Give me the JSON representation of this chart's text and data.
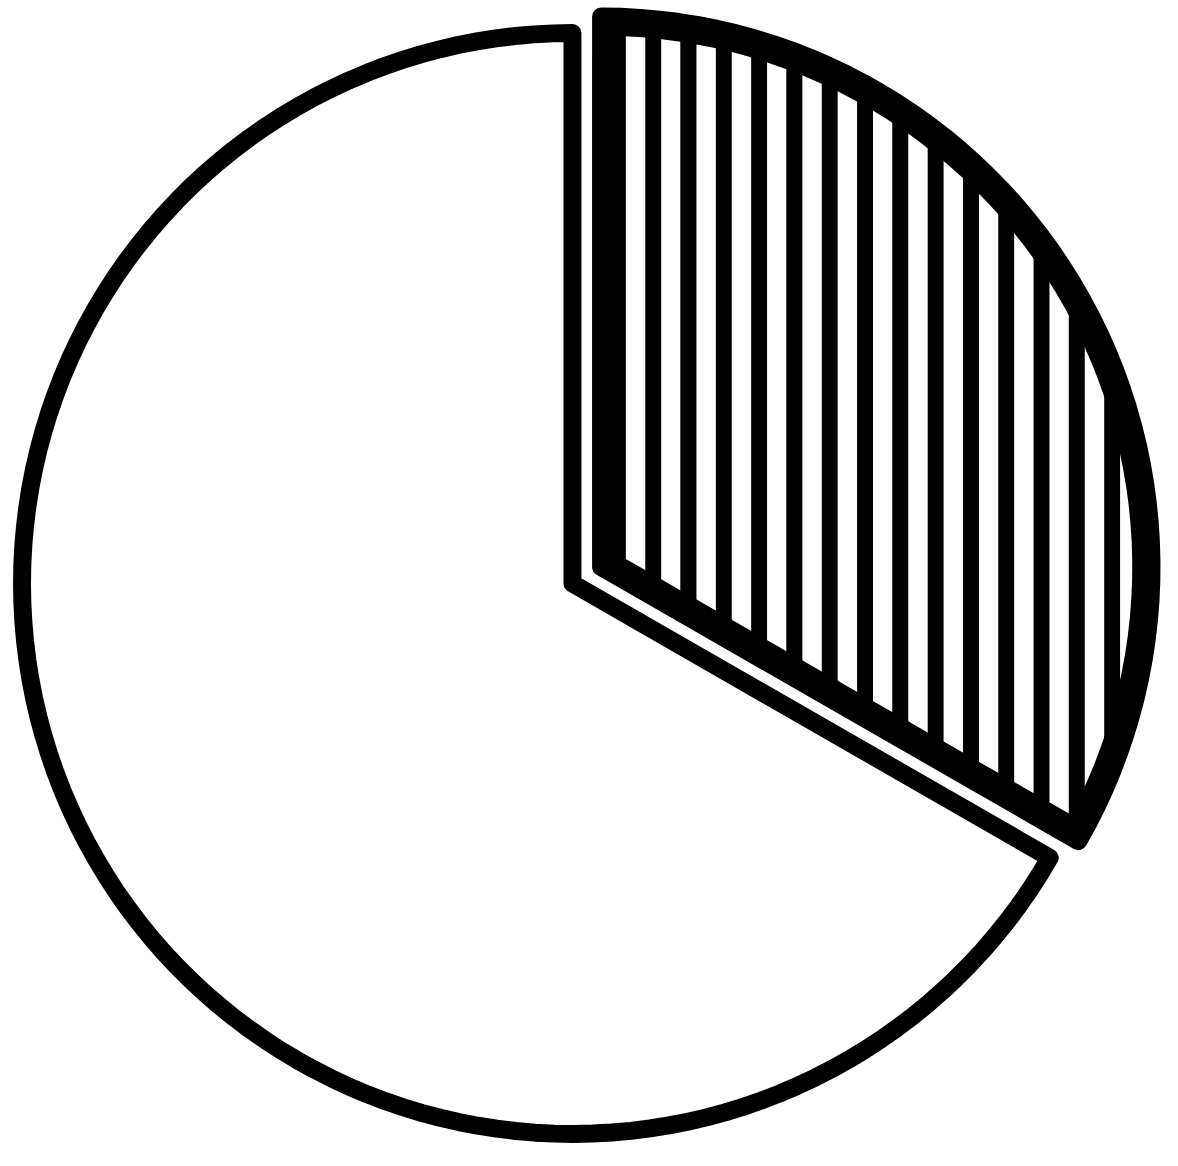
{
  "chart_data": {
    "type": "pie",
    "categories": [
      null,
      null
    ],
    "values": [
      33.3,
      66.7
    ],
    "colors": [
      "#000000",
      "#ffffff"
    ]
  }
}
